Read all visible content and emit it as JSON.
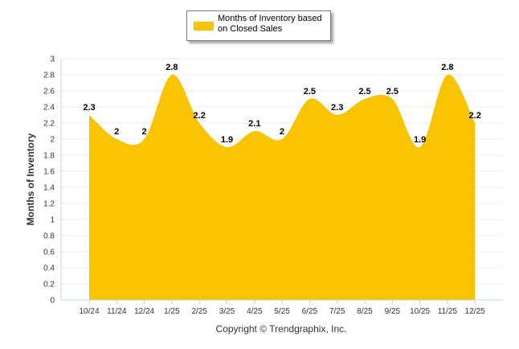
{
  "chart_data": {
    "type": "area",
    "categories": [
      "10/24",
      "11/24",
      "12/24",
      "1/25",
      "2/25",
      "3/25",
      "4/25",
      "5/25",
      "6/25",
      "7/25",
      "8/25",
      "9/25",
      "10/25",
      "11/25",
      "12/25"
    ],
    "series": [
      {
        "name": "Months of Inventory based on Closed Sales",
        "values": [
          2.3,
          2,
          2,
          2.8,
          2.2,
          1.9,
          2.1,
          2,
          2.5,
          2.3,
          2.5,
          2.5,
          1.9,
          2.8,
          2.2
        ]
      }
    ],
    "ylabel": "Months of Inventory",
    "xlabel": "",
    "ylim": [
      0,
      3
    ],
    "yticks": [
      "0",
      "0.2",
      "0.4",
      "0.6",
      "0.8",
      "1",
      "1.2",
      "1.4",
      "1.6",
      "1.8",
      "2",
      "2.2",
      "2.4",
      "2.6",
      "2.8",
      "3"
    ],
    "grid": true,
    "legend_position": "top-center",
    "data_labels": true
  },
  "colors": {
    "fill": "#F8C300",
    "axis": "#c0d0e0",
    "grid": "#ebebeb"
  },
  "legend": {
    "label": "Months of Inventory based on Closed Sales"
  },
  "footer": {
    "copyright": "Copyright © Trendgraphix, Inc."
  }
}
